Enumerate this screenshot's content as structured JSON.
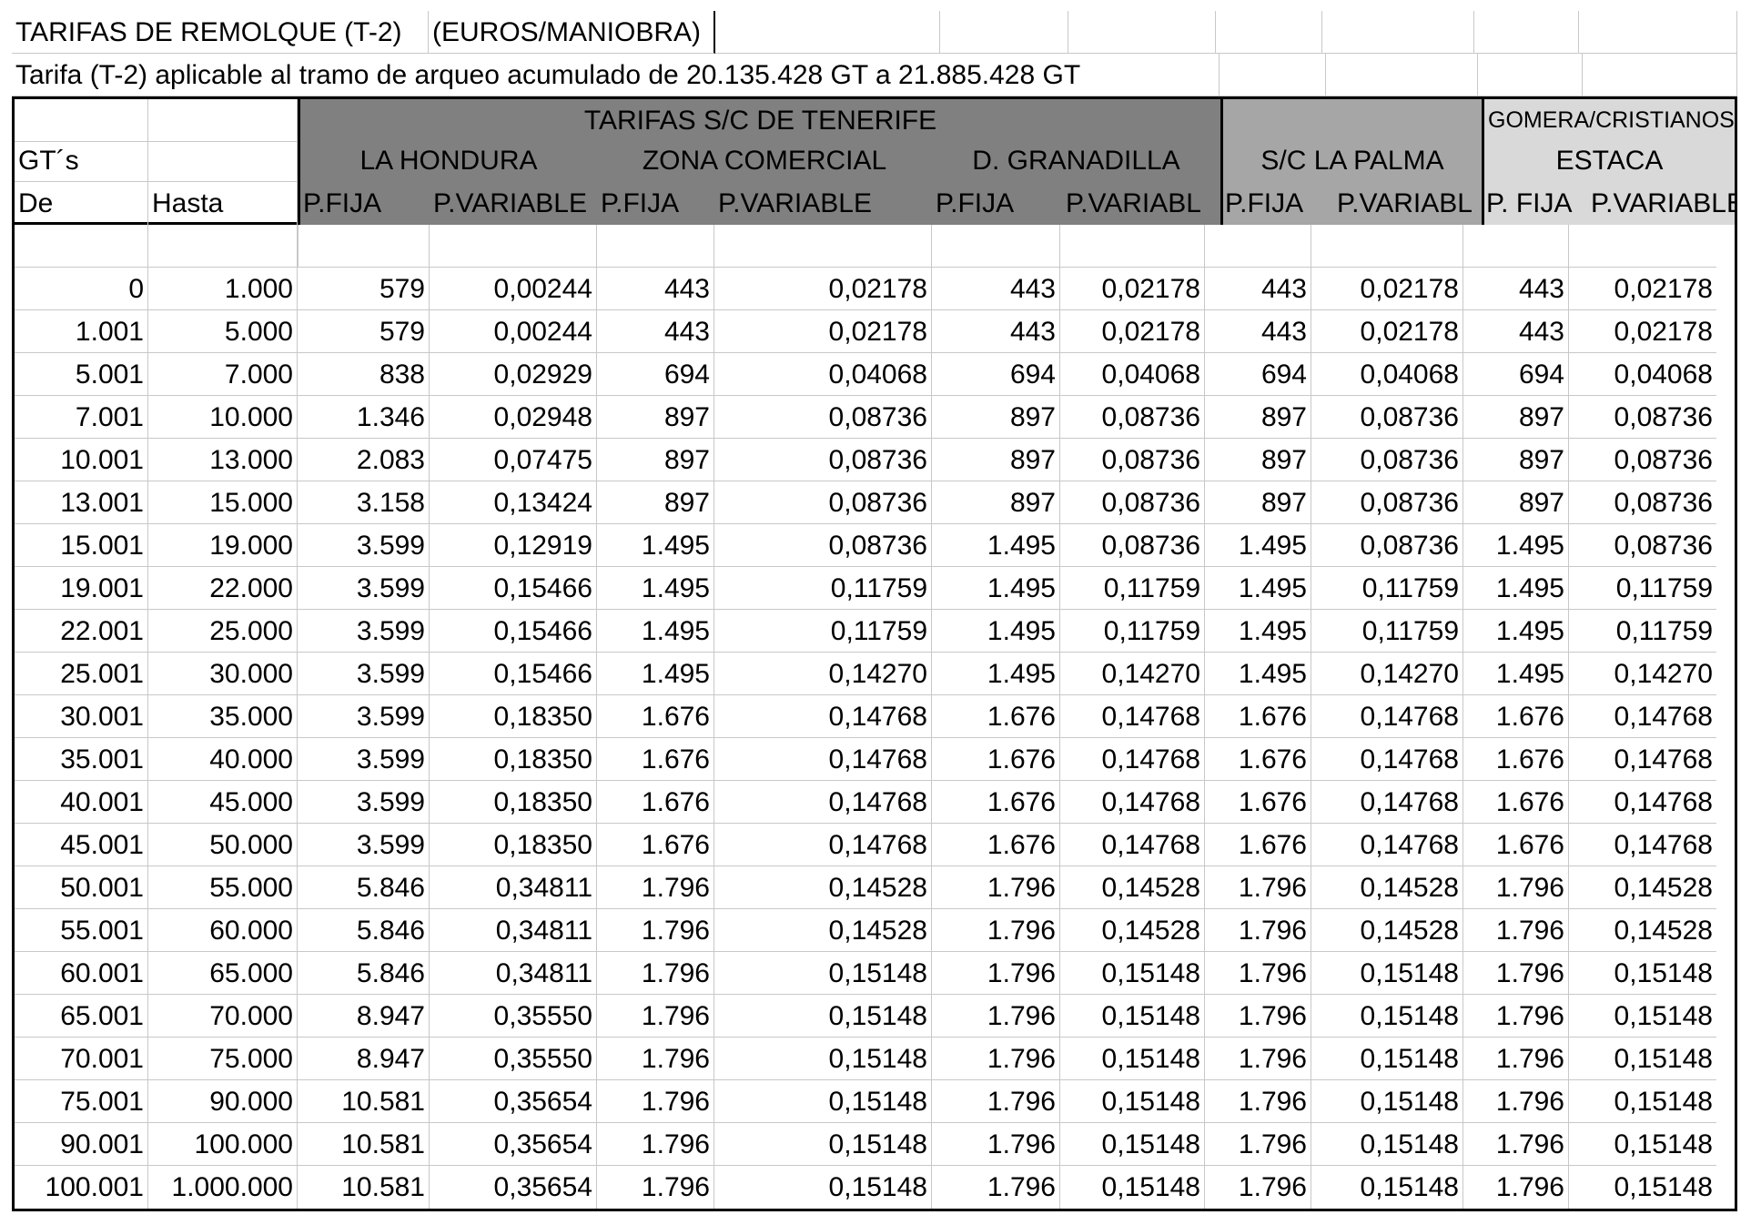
{
  "header": {
    "title": "TARIFAS DE REMOLQUE (T-2)",
    "unit": "(EUROS/MANIOBRA)",
    "subtitle": "Tarifa (T-2) aplicable al tramo  de arqueo acumulado  de  20.135.428 GT a  21.885.428 GT"
  },
  "groups": {
    "tenerife": "TARIFAS  S/C DE TENERIFE",
    "la_hondura": "LA HONDURA",
    "zona_comercial": "ZONA COMERCIAL",
    "granadilla": "D. GRANADILLA",
    "la_palma": "S/C LA PALMA",
    "gomera_line1": "GOMERA/CRISTIANOS/",
    "gomera_line2": "ESTACA"
  },
  "col_labels": {
    "gts": "GT´s",
    "de": "De",
    "hasta": "Hasta",
    "h_fija": "P.FIJA",
    "h_var": "P.VARIABLE",
    "z_fija": "P.FIJA",
    "z_var": "P.VARIABLE",
    "g_fija": "P.FIJA",
    "g_var": "P.VARIABL",
    "p_fija": "P.FIJA",
    "p_var": "P.VARIABL",
    "e_fija": "P. FIJA",
    "e_var": "P.VARIABLE"
  },
  "rows": [
    [
      "0",
      "1.000",
      "579",
      "0,00244",
      "443",
      "0,02178",
      "443",
      "0,02178",
      "443",
      "0,02178",
      "443",
      "0,02178"
    ],
    [
      "1.001",
      "5.000",
      "579",
      "0,00244",
      "443",
      "0,02178",
      "443",
      "0,02178",
      "443",
      "0,02178",
      "443",
      "0,02178"
    ],
    [
      "5.001",
      "7.000",
      "838",
      "0,02929",
      "694",
      "0,04068",
      "694",
      "0,04068",
      "694",
      "0,04068",
      "694",
      "0,04068"
    ],
    [
      "7.001",
      "10.000",
      "1.346",
      "0,02948",
      "897",
      "0,08736",
      "897",
      "0,08736",
      "897",
      "0,08736",
      "897",
      "0,08736"
    ],
    [
      "10.001",
      "13.000",
      "2.083",
      "0,07475",
      "897",
      "0,08736",
      "897",
      "0,08736",
      "897",
      "0,08736",
      "897",
      "0,08736"
    ],
    [
      "13.001",
      "15.000",
      "3.158",
      "0,13424",
      "897",
      "0,08736",
      "897",
      "0,08736",
      "897",
      "0,08736",
      "897",
      "0,08736"
    ],
    [
      "15.001",
      "19.000",
      "3.599",
      "0,12919",
      "1.495",
      "0,08736",
      "1.495",
      "0,08736",
      "1.495",
      "0,08736",
      "1.495",
      "0,08736"
    ],
    [
      "19.001",
      "22.000",
      "3.599",
      "0,15466",
      "1.495",
      "0,11759",
      "1.495",
      "0,11759",
      "1.495",
      "0,11759",
      "1.495",
      "0,11759"
    ],
    [
      "22.001",
      "25.000",
      "3.599",
      "0,15466",
      "1.495",
      "0,11759",
      "1.495",
      "0,11759",
      "1.495",
      "0,11759",
      "1.495",
      "0,11759"
    ],
    [
      "25.001",
      "30.000",
      "3.599",
      "0,15466",
      "1.495",
      "0,14270",
      "1.495",
      "0,14270",
      "1.495",
      "0,14270",
      "1.495",
      "0,14270"
    ],
    [
      "30.001",
      "35.000",
      "3.599",
      "0,18350",
      "1.676",
      "0,14768",
      "1.676",
      "0,14768",
      "1.676",
      "0,14768",
      "1.676",
      "0,14768"
    ],
    [
      "35.001",
      "40.000",
      "3.599",
      "0,18350",
      "1.676",
      "0,14768",
      "1.676",
      "0,14768",
      "1.676",
      "0,14768",
      "1.676",
      "0,14768"
    ],
    [
      "40.001",
      "45.000",
      "3.599",
      "0,18350",
      "1.676",
      "0,14768",
      "1.676",
      "0,14768",
      "1.676",
      "0,14768",
      "1.676",
      "0,14768"
    ],
    [
      "45.001",
      "50.000",
      "3.599",
      "0,18350",
      "1.676",
      "0,14768",
      "1.676",
      "0,14768",
      "1.676",
      "0,14768",
      "1.676",
      "0,14768"
    ],
    [
      "50.001",
      "55.000",
      "5.846",
      "0,34811",
      "1.796",
      "0,14528",
      "1.796",
      "0,14528",
      "1.796",
      "0,14528",
      "1.796",
      "0,14528"
    ],
    [
      "55.001",
      "60.000",
      "5.846",
      "0,34811",
      "1.796",
      "0,14528",
      "1.796",
      "0,14528",
      "1.796",
      "0,14528",
      "1.796",
      "0,14528"
    ],
    [
      "60.001",
      "65.000",
      "5.846",
      "0,34811",
      "1.796",
      "0,15148",
      "1.796",
      "0,15148",
      "1.796",
      "0,15148",
      "1.796",
      "0,15148"
    ],
    [
      "65.001",
      "70.000",
      "8.947",
      "0,35550",
      "1.796",
      "0,15148",
      "1.796",
      "0,15148",
      "1.796",
      "0,15148",
      "1.796",
      "0,15148"
    ],
    [
      "70.001",
      "75.000",
      "8.947",
      "0,35550",
      "1.796",
      "0,15148",
      "1.796",
      "0,15148",
      "1.796",
      "0,15148",
      "1.796",
      "0,15148"
    ],
    [
      "75.001",
      "90.000",
      "10.581",
      "0,35654",
      "1.796",
      "0,15148",
      "1.796",
      "0,15148",
      "1.796",
      "0,15148",
      "1.796",
      "0,15148"
    ],
    [
      "90.001",
      "100.000",
      "10.581",
      "0,35654",
      "1.796",
      "0,15148",
      "1.796",
      "0,15148",
      "1.796",
      "0,15148",
      "1.796",
      "0,15148"
    ],
    [
      "100.001",
      "1.000.000",
      "10.581",
      "0,35654",
      "1.796",
      "0,15148",
      "1.796",
      "0,15148",
      "1.796",
      "0,15148",
      "1.796",
      "0,15148"
    ]
  ],
  "colors": {
    "tenerife_header": "#808080",
    "la_palma_header": "#a6a6a6",
    "gomera_header": "#d9d9d9",
    "gridline": "#c8c8c8"
  }
}
